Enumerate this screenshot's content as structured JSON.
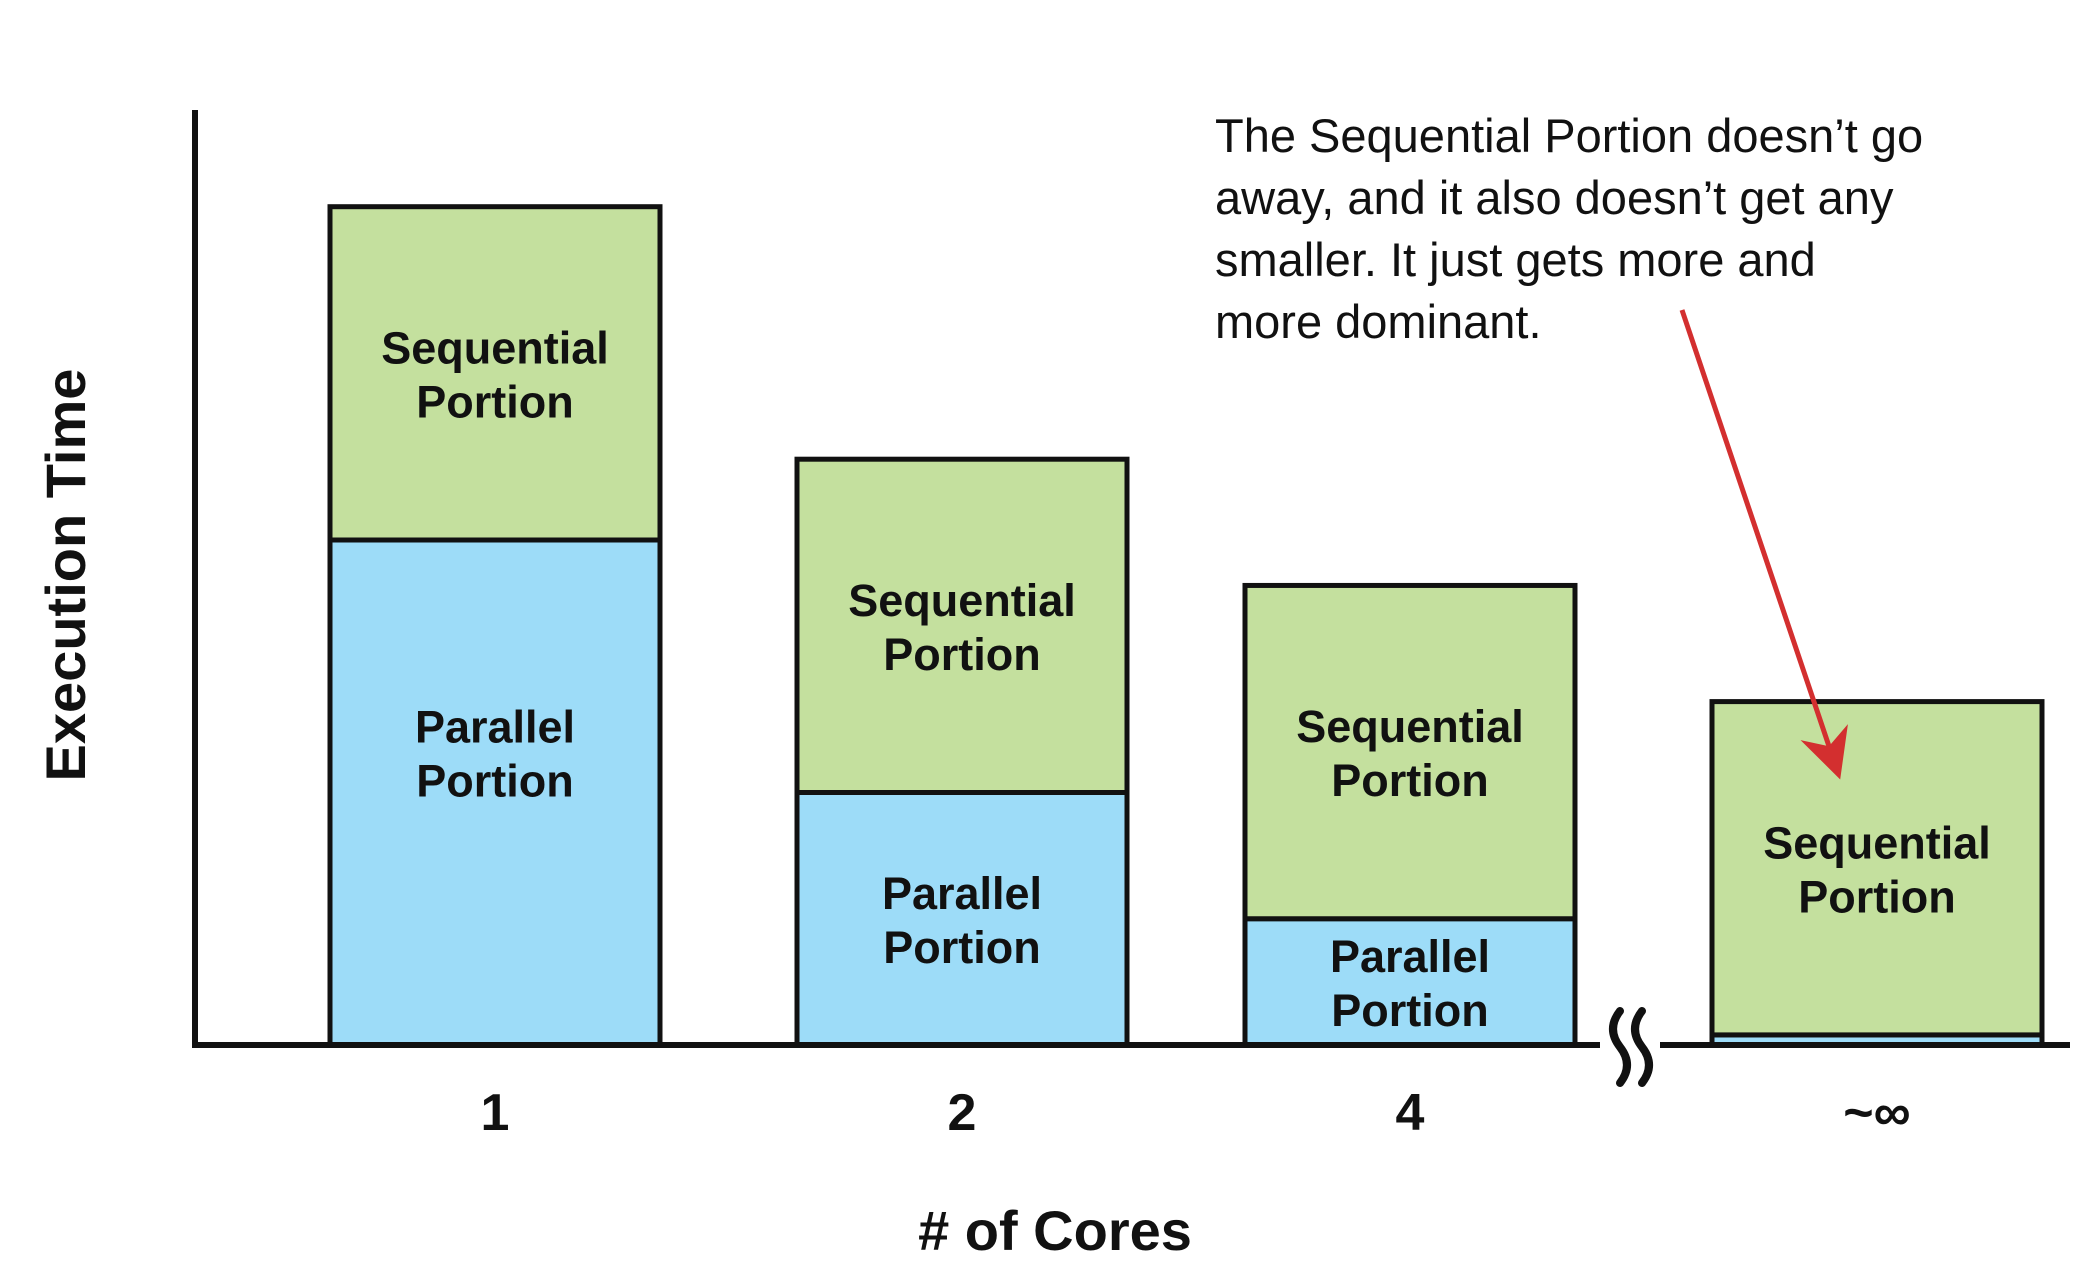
{
  "chart_data": {
    "type": "bar",
    "stacked": true,
    "categories": [
      "1",
      "2",
      "4",
      "~∞"
    ],
    "series": [
      {
        "name": "Parallel Portion",
        "color": "#9ddcf8",
        "values": [
          1.0,
          0.5,
          0.25,
          0.02
        ],
        "segment_label": [
          "Parallel",
          "Portion"
        ]
      },
      {
        "name": "Sequential Portion",
        "color": "#c4e09e",
        "values": [
          0.66,
          0.66,
          0.66,
          0.66
        ],
        "segment_label": [
          "Sequential",
          "Portion"
        ]
      }
    ],
    "xlabel": "# of Cores",
    "ylabel": "Execution Time",
    "ylim": [
      0,
      1.85
    ],
    "axis_break_before_last": true,
    "axis_break_symbol": "≈",
    "annotation": {
      "lines": [
        "The Sequential Portion doesn’t go",
        "away, and it also doesn’t get any",
        "smaller.   It just gets more and",
        "more dominant."
      ],
      "arrow_color": "#d32f2f",
      "arrow_target_category": "~∞"
    },
    "grid": false,
    "legend": "none"
  }
}
